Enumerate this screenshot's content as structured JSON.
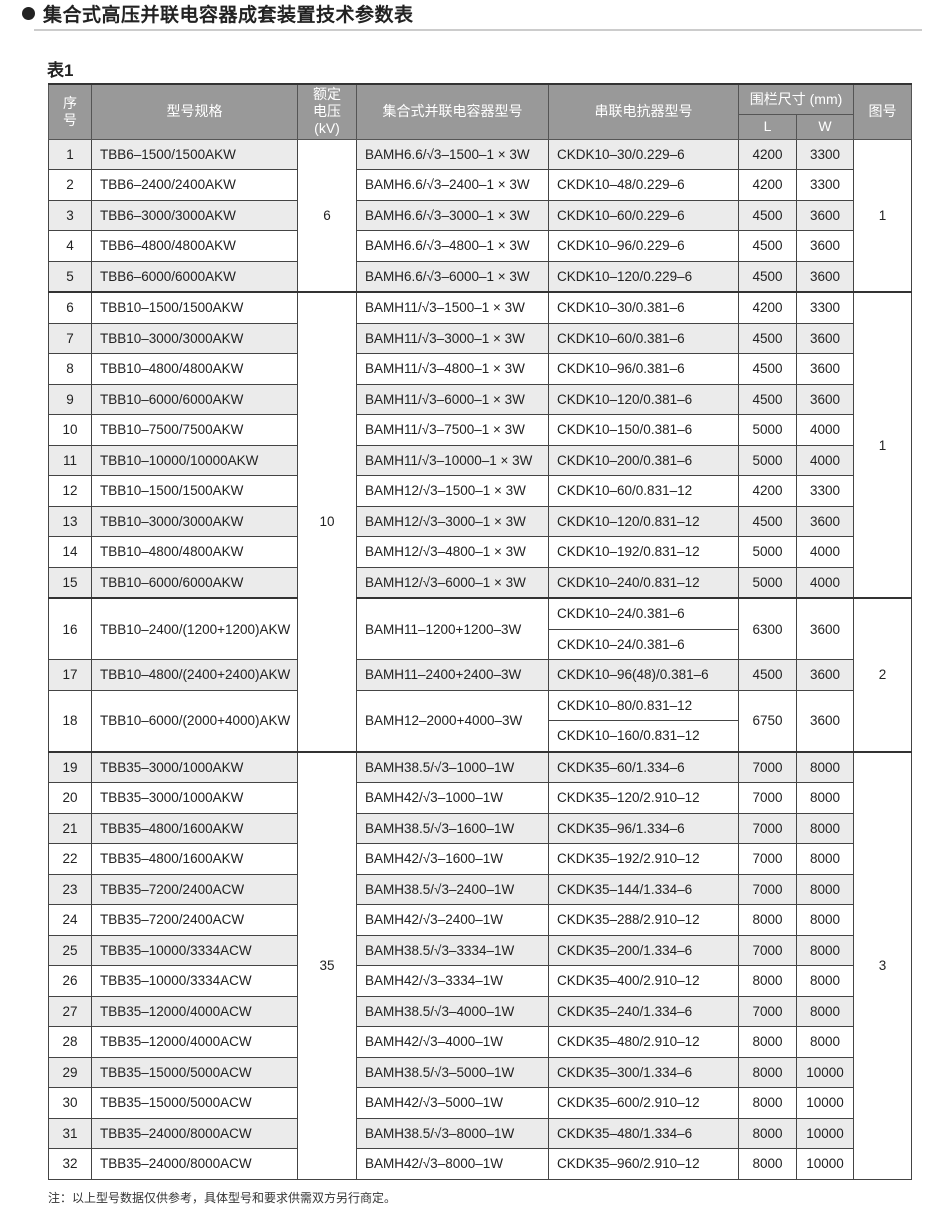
{
  "title": "集合式高压并联电容器成套装置技术参数表",
  "table_label": "表1",
  "headers": {
    "no": "序号",
    "model": "型号规格",
    "voltage": "额定电压(kV)",
    "capacitor": "集合式并联电容器型号",
    "reactor": "串联电抗器型号",
    "fence": "围栏尺寸 (mm)",
    "L": "L",
    "W": "W",
    "figure": "图号"
  },
  "voltage_groups": [
    {
      "value": "6",
      "from": 1,
      "to": 5
    },
    {
      "value": "10",
      "from": 6,
      "to": 18
    },
    {
      "value": "35",
      "from": 19,
      "to": 32
    }
  ],
  "figure_groups": [
    {
      "value": "1",
      "from": 1,
      "to": 5
    },
    {
      "value": "1",
      "from": 6,
      "to": 15
    },
    {
      "value": "2",
      "from": 16,
      "to": 18
    },
    {
      "value": "3",
      "from": 19,
      "to": 32
    }
  ],
  "rows": [
    {
      "no": "1",
      "model": "TBB6–1500/1500AKW",
      "capacitor": "BAMH6.6/√3–1500–1 × 3W",
      "reactor": [
        "CKDK10–30/0.229–6"
      ],
      "L": "4200",
      "W": "3300"
    },
    {
      "no": "2",
      "model": "TBB6–2400/2400AKW",
      "capacitor": "BAMH6.6/√3–2400–1 × 3W",
      "reactor": [
        "CKDK10–48/0.229–6"
      ],
      "L": "4200",
      "W": "3300"
    },
    {
      "no": "3",
      "model": "TBB6–3000/3000AKW",
      "capacitor": "BAMH6.6/√3–3000–1 × 3W",
      "reactor": [
        "CKDK10–60/0.229–6"
      ],
      "L": "4500",
      "W": "3600"
    },
    {
      "no": "4",
      "model": "TBB6–4800/4800AKW",
      "capacitor": "BAMH6.6/√3–4800–1 × 3W",
      "reactor": [
        "CKDK10–96/0.229–6"
      ],
      "L": "4500",
      "W": "3600"
    },
    {
      "no": "5",
      "model": "TBB6–6000/6000AKW",
      "capacitor": "BAMH6.6/√3–6000–1 × 3W",
      "reactor": [
        "CKDK10–120/0.229–6"
      ],
      "L": "4500",
      "W": "3600"
    },
    {
      "no": "6",
      "model": "TBB10–1500/1500AKW",
      "capacitor": "BAMH11/√3–1500–1 × 3W",
      "reactor": [
        "CKDK10–30/0.381–6"
      ],
      "L": "4200",
      "W": "3300"
    },
    {
      "no": "7",
      "model": "TBB10–3000/3000AKW",
      "capacitor": "BAMH11/√3–3000–1 × 3W",
      "reactor": [
        "CKDK10–60/0.381–6"
      ],
      "L": "4500",
      "W": "3600"
    },
    {
      "no": "8",
      "model": "TBB10–4800/4800AKW",
      "capacitor": "BAMH11/√3–4800–1 × 3W",
      "reactor": [
        "CKDK10–96/0.381–6"
      ],
      "L": "4500",
      "W": "3600"
    },
    {
      "no": "9",
      "model": "TBB10–6000/6000AKW",
      "capacitor": "BAMH11/√3–6000–1 × 3W",
      "reactor": [
        "CKDK10–120/0.381–6"
      ],
      "L": "4500",
      "W": "3600"
    },
    {
      "no": "10",
      "model": "TBB10–7500/7500AKW",
      "capacitor": "BAMH11/√3–7500–1 × 3W",
      "reactor": [
        "CKDK10–150/0.381–6"
      ],
      "L": "5000",
      "W": "4000"
    },
    {
      "no": "11",
      "model": "TBB10–10000/10000AKW",
      "capacitor": "BAMH11/√3–10000–1 × 3W",
      "reactor": [
        "CKDK10–200/0.381–6"
      ],
      "L": "5000",
      "W": "4000"
    },
    {
      "no": "12",
      "model": "TBB10–1500/1500AKW",
      "capacitor": "BAMH12/√3–1500–1 × 3W",
      "reactor": [
        "CKDK10–60/0.831–12"
      ],
      "L": "4200",
      "W": "3300"
    },
    {
      "no": "13",
      "model": "TBB10–3000/3000AKW",
      "capacitor": "BAMH12/√3–3000–1 × 3W",
      "reactor": [
        "CKDK10–120/0.831–12"
      ],
      "L": "4500",
      "W": "3600"
    },
    {
      "no": "14",
      "model": "TBB10–4800/4800AKW",
      "capacitor": "BAMH12/√3–4800–1 × 3W",
      "reactor": [
        "CKDK10–192/0.831–12"
      ],
      "L": "5000",
      "W": "4000"
    },
    {
      "no": "15",
      "model": "TBB10–6000/6000AKW",
      "capacitor": "BAMH12/√3–6000–1 × 3W",
      "reactor": [
        "CKDK10–240/0.831–12"
      ],
      "L": "5000",
      "W": "4000"
    },
    {
      "no": "16",
      "model": "TBB10–2400/(1200+1200)AKW",
      "capacitor": "BAMH11–1200+1200–3W",
      "reactor": [
        "CKDK10–24/0.381–6",
        "CKDK10–24/0.381–6"
      ],
      "L": "6300",
      "W": "3600"
    },
    {
      "no": "17",
      "model": "TBB10–4800/(2400+2400)AKW",
      "capacitor": "BAMH11–2400+2400–3W",
      "reactor": [
        "CKDK10–96(48)/0.381–6"
      ],
      "L": "4500",
      "W": "3600"
    },
    {
      "no": "18",
      "model": "TBB10–6000/(2000+4000)AKW",
      "capacitor": "BAMH12–2000+4000–3W",
      "reactor": [
        "CKDK10–80/0.831–12",
        "CKDK10–160/0.831–12"
      ],
      "L": "6750",
      "W": "3600"
    },
    {
      "no": "19",
      "model": "TBB35–3000/1000AKW",
      "capacitor": "BAMH38.5/√3–1000–1W",
      "reactor": [
        "CKDK35–60/1.334–6"
      ],
      "L": "7000",
      "W": "8000"
    },
    {
      "no": "20",
      "model": "TBB35–3000/1000AKW",
      "capacitor": "BAMH42/√3–1000–1W",
      "reactor": [
        "CKDK35–120/2.910–12"
      ],
      "L": "7000",
      "W": "8000"
    },
    {
      "no": "21",
      "model": "TBB35–4800/1600AKW",
      "capacitor": "BAMH38.5/√3–1600–1W",
      "reactor": [
        "CKDK35–96/1.334–6"
      ],
      "L": "7000",
      "W": "8000"
    },
    {
      "no": "22",
      "model": "TBB35–4800/1600AKW",
      "capacitor": "BAMH42/√3–1600–1W",
      "reactor": [
        "CKDK35–192/2.910–12"
      ],
      "L": "7000",
      "W": "8000"
    },
    {
      "no": "23",
      "model": "TBB35–7200/2400ACW",
      "capacitor": "BAMH38.5/√3–2400–1W",
      "reactor": [
        "CKDK35–144/1.334–6"
      ],
      "L": "7000",
      "W": "8000"
    },
    {
      "no": "24",
      "model": "TBB35–7200/2400ACW",
      "capacitor": "BAMH42/√3–2400–1W",
      "reactor": [
        "CKDK35–288/2.910–12"
      ],
      "L": "8000",
      "W": "8000"
    },
    {
      "no": "25",
      "model": "TBB35–10000/3334ACW",
      "capacitor": "BAMH38.5/√3–3334–1W",
      "reactor": [
        "CKDK35–200/1.334–6"
      ],
      "L": "7000",
      "W": "8000"
    },
    {
      "no": "26",
      "model": "TBB35–10000/3334ACW",
      "capacitor": "BAMH42/√3–3334–1W",
      "reactor": [
        "CKDK35–400/2.910–12"
      ],
      "L": "8000",
      "W": "8000"
    },
    {
      "no": "27",
      "model": "TBB35–12000/4000ACW",
      "capacitor": "BAMH38.5/√3–4000–1W",
      "reactor": [
        "CKDK35–240/1.334–6"
      ],
      "L": "7000",
      "W": "8000"
    },
    {
      "no": "28",
      "model": "TBB35–12000/4000ACW",
      "capacitor": "BAMH42/√3–4000–1W",
      "reactor": [
        "CKDK35–480/2.910–12"
      ],
      "L": "8000",
      "W": "8000"
    },
    {
      "no": "29",
      "model": "TBB35–15000/5000ACW",
      "capacitor": "BAMH38.5/√3–5000–1W",
      "reactor": [
        "CKDK35–300/1.334–6"
      ],
      "L": "8000",
      "W": "10000"
    },
    {
      "no": "30",
      "model": "TBB35–15000/5000ACW",
      "capacitor": "BAMH42/√3–5000–1W",
      "reactor": [
        "CKDK35–600/2.910–12"
      ],
      "L": "8000",
      "W": "10000"
    },
    {
      "no": "31",
      "model": "TBB35–24000/8000ACW",
      "capacitor": "BAMH38.5/√3–8000–1W",
      "reactor": [
        "CKDK35–480/1.334–6"
      ],
      "L": "8000",
      "W": "10000"
    },
    {
      "no": "32",
      "model": "TBB35–24000/8000ACW",
      "capacitor": "BAMH42/√3–8000–1W",
      "reactor": [
        "CKDK35–960/2.910–12"
      ],
      "L": "8000",
      "W": "10000"
    }
  ],
  "note": "注：以上型号数据仅供参考，具体型号和要求供需双方另行商定。"
}
